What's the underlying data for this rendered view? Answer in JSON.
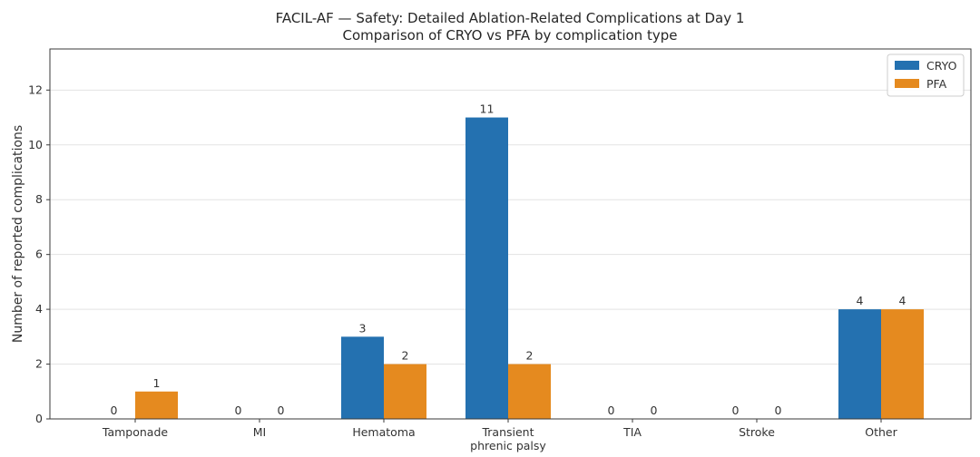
{
  "chart_data": {
    "type": "bar",
    "title": "FACIL-AF — Safety: Detailed Ablation-Related Complications at Day 1",
    "subtitle": "Comparison of CRYO vs PFA by complication type",
    "xlabel": "",
    "ylabel": "Number of reported complications",
    "categories": [
      "Tamponade",
      "MI",
      "Hematoma",
      "Transient\nphrenic palsy",
      "TIA",
      "Stroke",
      "Other"
    ],
    "series": [
      {
        "name": "CRYO",
        "color": "#2471b0",
        "values": [
          0,
          0,
          3,
          11,
          0,
          0,
          4
        ]
      },
      {
        "name": "PFA",
        "color": "#e58a1f",
        "values": [
          1,
          0,
          2,
          2,
          0,
          0,
          4
        ]
      }
    ],
    "ylim": [
      0,
      13.5
    ],
    "yticks": [
      0,
      2,
      4,
      6,
      8,
      10,
      12
    ],
    "grid": true,
    "legend": "top-right"
  }
}
